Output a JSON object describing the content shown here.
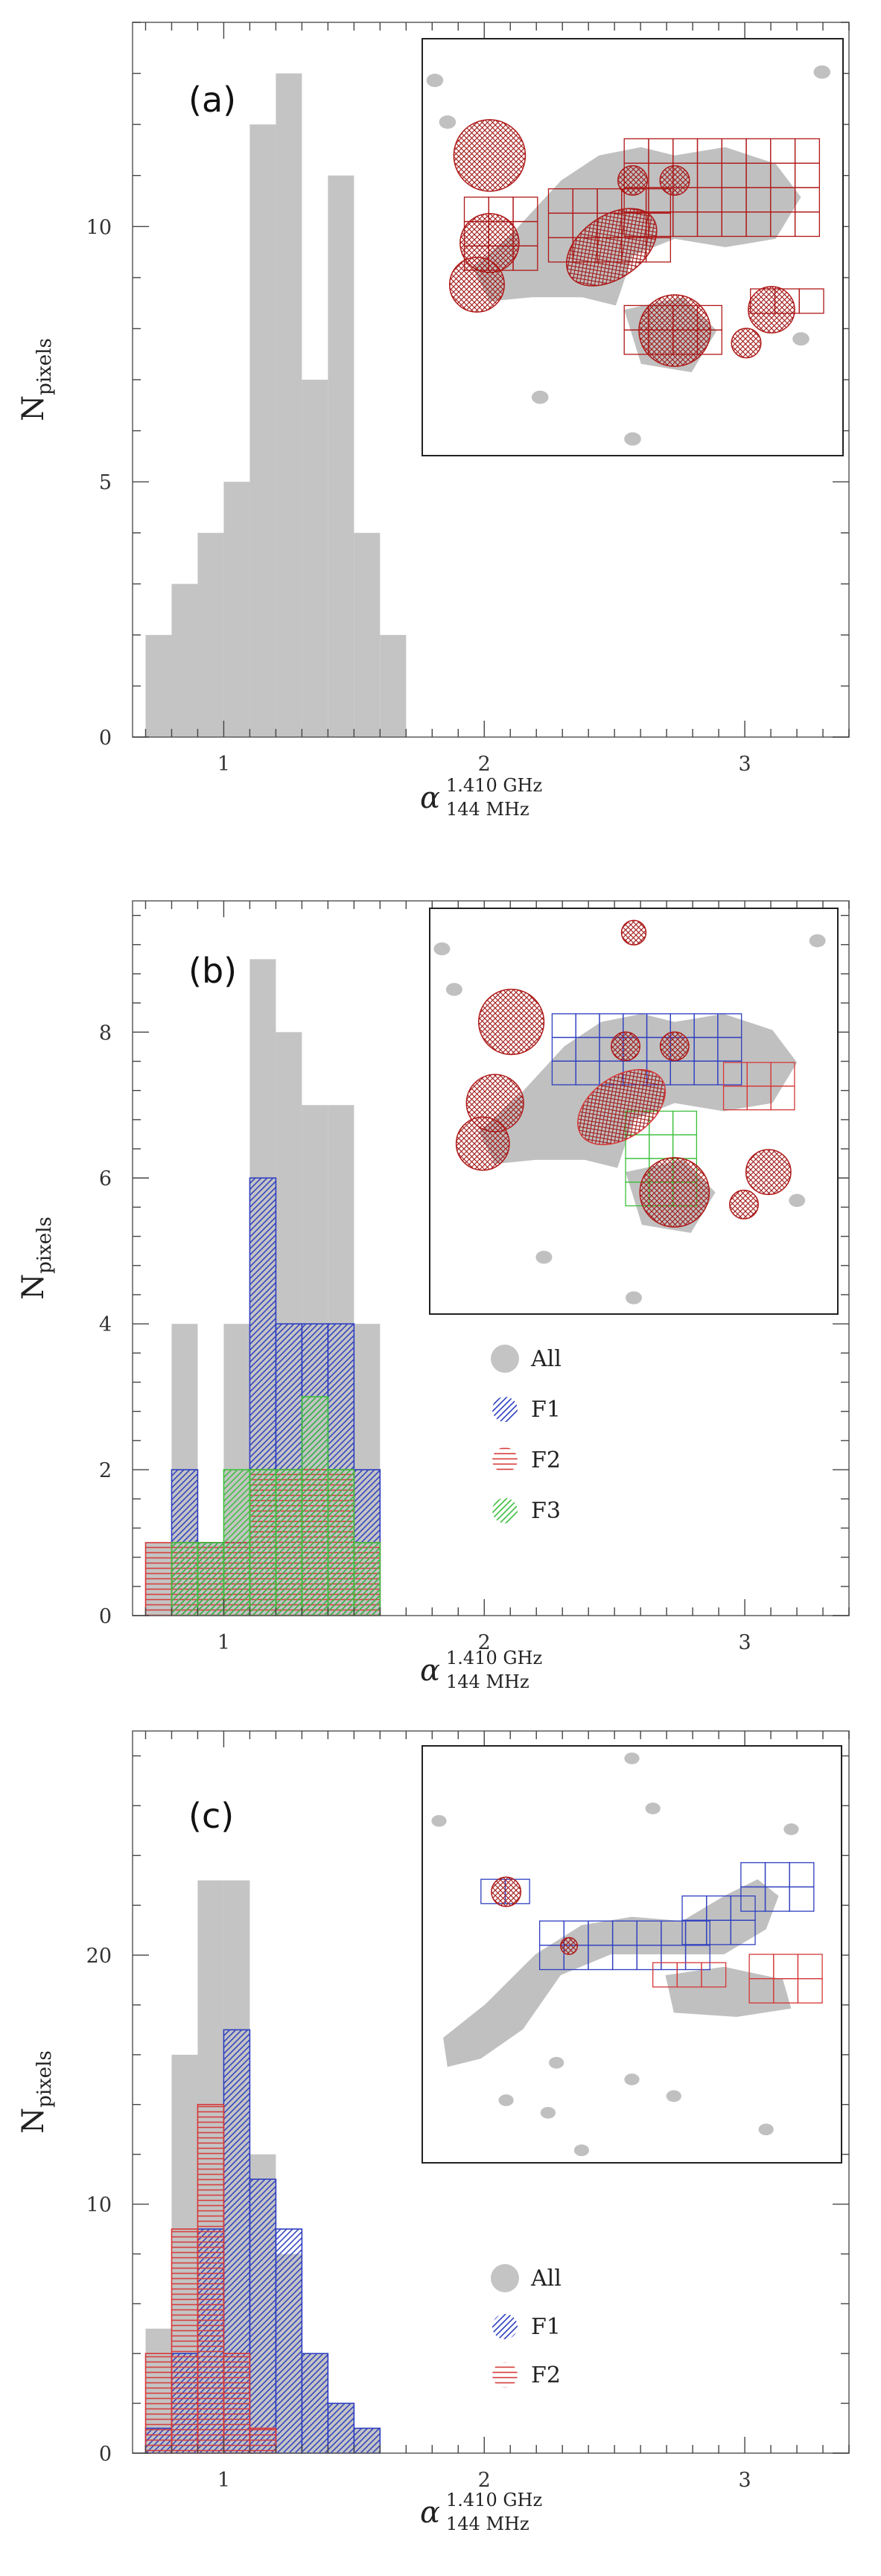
{
  "chart_data": [
    {
      "type": "bar",
      "panel": "(a)",
      "ylabel_main": "N",
      "ylabel_sub": "pixels",
      "xlabel_main": "α",
      "xlabel_sup": "1.410 GHz",
      "xlabel_sub": "144 MHz",
      "xlim": [
        0.65,
        3.4
      ],
      "ylim": [
        0,
        14
      ],
      "xticks": [
        1,
        2,
        3
      ],
      "yticks": [
        0,
        5,
        10
      ],
      "bin_width": 0.1,
      "series": [
        {
          "name": "All",
          "color": "#c4c4c4",
          "style": "solid",
          "bins": [
            0.7,
            0.8,
            0.9,
            1.0,
            1.1,
            1.2,
            1.3,
            1.4,
            1.5,
            1.6
          ],
          "values": [
            2,
            3,
            4,
            5,
            12,
            13,
            7,
            11,
            4,
            2
          ]
        }
      ],
      "legend": []
    },
    {
      "type": "bar",
      "panel": "(b)",
      "ylabel_main": "N",
      "ylabel_sub": "pixels",
      "xlabel_main": "α",
      "xlabel_sup": "1.410 GHz",
      "xlabel_sub": "144 MHz",
      "xlim": [
        0.65,
        3.4
      ],
      "ylim": [
        0,
        9.8
      ],
      "xticks": [
        1,
        2,
        3
      ],
      "yticks": [
        0,
        2,
        4,
        6,
        8
      ],
      "bin_width": 0.1,
      "series": [
        {
          "name": "All",
          "color": "#c4c4c4",
          "style": "solid",
          "bins": [
            0.7,
            0.8,
            0.9,
            1.0,
            1.1,
            1.2,
            1.3,
            1.4,
            1.5
          ],
          "values": [
            1,
            4,
            1,
            4,
            9,
            8,
            7,
            7,
            4
          ]
        },
        {
          "name": "F1",
          "color": "#2e3fc0",
          "style": "diag",
          "bins": [
            0.8,
            0.9,
            1.0,
            1.1,
            1.2,
            1.3,
            1.4,
            1.5
          ],
          "values": [
            2,
            1,
            1,
            6,
            4,
            4,
            4,
            2
          ]
        },
        {
          "name": "F2",
          "color": "#d63838",
          "style": "horiz",
          "bins": [
            0.7,
            0.8,
            0.9,
            1.0,
            1.1,
            1.2,
            1.3,
            1.4,
            1.5
          ],
          "values": [
            1,
            1,
            1,
            1,
            2,
            2,
            2,
            2,
            1
          ]
        },
        {
          "name": "F3",
          "color": "#3cbf3c",
          "style": "diag2",
          "bins": [
            0.8,
            0.9,
            1.0,
            1.1,
            1.2,
            1.3,
            1.4,
            1.5
          ],
          "values": [
            1,
            1,
            2,
            2,
            2,
            3,
            2,
            1
          ]
        }
      ],
      "legend": [
        "All",
        "F1",
        "F2",
        "F3"
      ]
    },
    {
      "type": "bar",
      "panel": "(c)",
      "ylabel_main": "N",
      "ylabel_sub": "pixels",
      "xlabel_main": "α",
      "xlabel_sup": "1.410 GHz",
      "xlabel_sub": "144 MHz",
      "xlim": [
        0.65,
        3.4
      ],
      "ylim": [
        0,
        29
      ],
      "xticks": [
        1,
        2,
        3
      ],
      "yticks": [
        0,
        10,
        20
      ],
      "bin_width": 0.1,
      "series": [
        {
          "name": "All",
          "color": "#c4c4c4",
          "style": "solid",
          "bins": [
            0.7,
            0.8,
            0.9,
            1.0,
            1.1,
            1.2,
            1.3,
            1.4,
            1.5
          ],
          "values": [
            5,
            16,
            23,
            23,
            12,
            8,
            4,
            2,
            1
          ]
        },
        {
          "name": "F1",
          "color": "#2e3fc0",
          "style": "diag",
          "bins": [
            0.7,
            0.8,
            0.9,
            1.0,
            1.1,
            1.2,
            1.3,
            1.4,
            1.5
          ],
          "values": [
            1,
            4,
            9,
            17,
            11,
            9,
            4,
            2,
            1
          ]
        },
        {
          "name": "F2",
          "color": "#d63838",
          "style": "horiz",
          "bins": [
            0.7,
            0.8,
            0.9,
            1.0,
            1.1
          ],
          "values": [
            4,
            9,
            14,
            4,
            1
          ]
        }
      ],
      "legend": [
        "All",
        "F1",
        "F2"
      ]
    }
  ]
}
